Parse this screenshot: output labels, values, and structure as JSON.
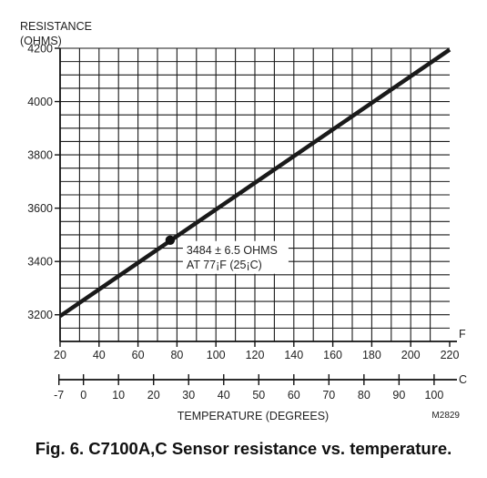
{
  "chart_data": {
    "type": "line",
    "ylabel": [
      "RESISTANCE",
      "(OHMS)"
    ],
    "xlabel": "TEMPERATURE (DEGREES)",
    "x_unit_f": "F",
    "x_unit_c": "C",
    "xlim_f": [
      20,
      220
    ],
    "ylim": [
      3100,
      4200
    ],
    "x_ticks_f": [
      20,
      40,
      60,
      80,
      100,
      120,
      140,
      160,
      180,
      200,
      220
    ],
    "x_ticks_c": [
      -7,
      0,
      10,
      20,
      30,
      40,
      50,
      60,
      70,
      80,
      90,
      100
    ],
    "y_ticks": [
      3200,
      3400,
      3600,
      3800,
      4000,
      4200
    ],
    "grid": true,
    "series": [
      {
        "x": [
          20,
          220
        ],
        "y": [
          3195,
          4195
        ]
      }
    ],
    "annotation": {
      "x": 76.5,
      "y": 3480,
      "lines": [
        "3484 ± 6.5 OHMS",
        "AT 77¡F (25¡C)"
      ]
    },
    "figure_code": "M2829",
    "caption": "Fig. 6. C7100A,C Sensor resistance vs. temperature."
  }
}
